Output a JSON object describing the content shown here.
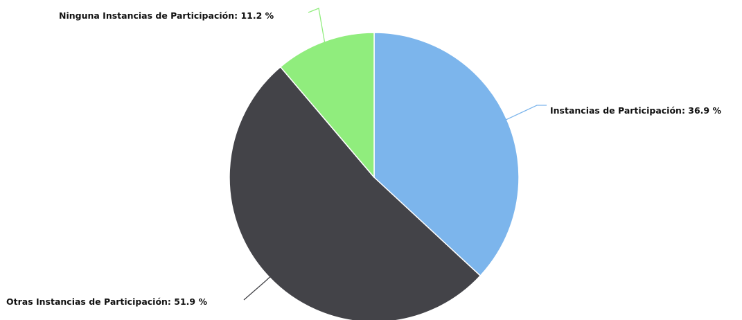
{
  "chart_data": {
    "type": "pie",
    "title": "",
    "start_angle_deg": 0,
    "direction": "clockwise",
    "slices": [
      {
        "label": "Instancias de Participación",
        "value": 36.9,
        "color": "#7cb5ec",
        "label_text": "Instancias de Participación: 36.9 %",
        "label_side": "right"
      },
      {
        "label": "Otras Instancias de Participación",
        "value": 51.9,
        "color": "#434348",
        "label_text": "Otras Instancias de Participación: 51.9 %",
        "label_side": "left"
      },
      {
        "label": "Ninguna Instancias de Participación",
        "value": 11.2,
        "color": "#90ed7d",
        "label_text": "Ninguna Instancias de Participación: 11.2 %",
        "label_side": "left"
      }
    ]
  }
}
